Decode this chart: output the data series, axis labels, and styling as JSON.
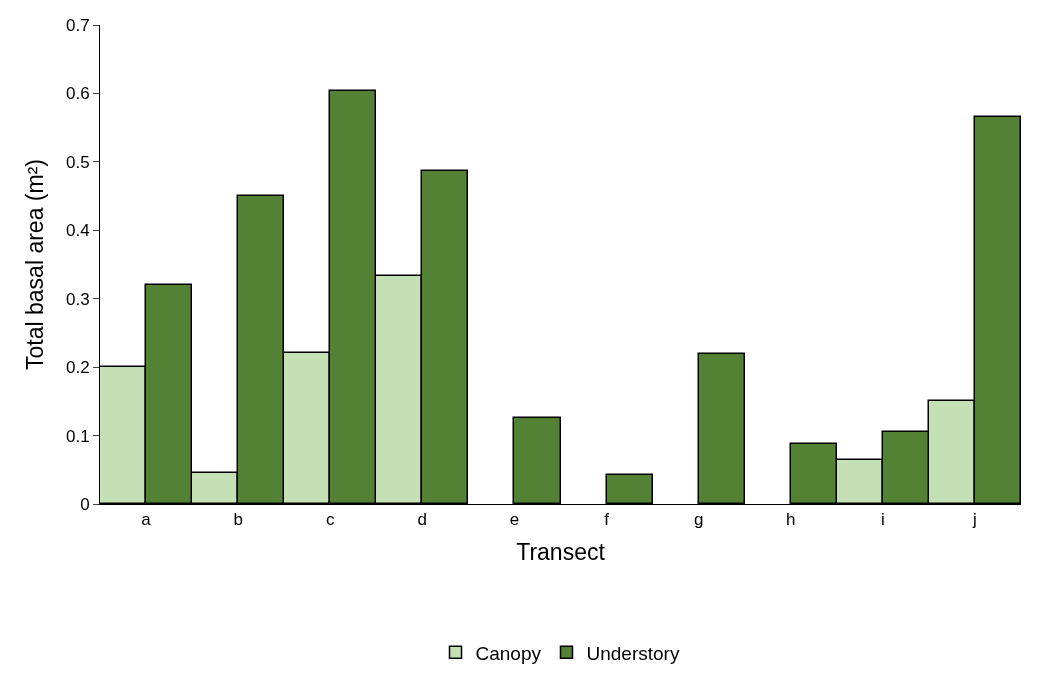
{
  "chart_data": {
    "type": "bar",
    "xlabel": "Transect",
    "ylabel": "Total basal area (m²)",
    "categories": [
      "a",
      "b",
      "c",
      "d",
      "e",
      "f",
      "g",
      "h",
      "i",
      "j"
    ],
    "series": [
      {
        "name": "Canopy",
        "color": "#c5e0b4",
        "values": [
          0.2,
          0.045,
          0.22,
          0.333,
          0,
          0,
          0,
          0,
          0.065,
          0.151
        ]
      },
      {
        "name": "Understory",
        "color": "#548235",
        "values": [
          0.32,
          0.45,
          0.603,
          0.486,
          0.126,
          0.043,
          0.219,
          0.088,
          0.105,
          0.566
        ]
      }
    ],
    "ylim": [
      0,
      0.7
    ],
    "yticks": [
      {
        "value": 0,
        "label": "0"
      },
      0.1,
      0.2,
      0.3,
      0.4,
      0.5,
      0.6,
      0.7
    ],
    "legend": "bottom"
  }
}
